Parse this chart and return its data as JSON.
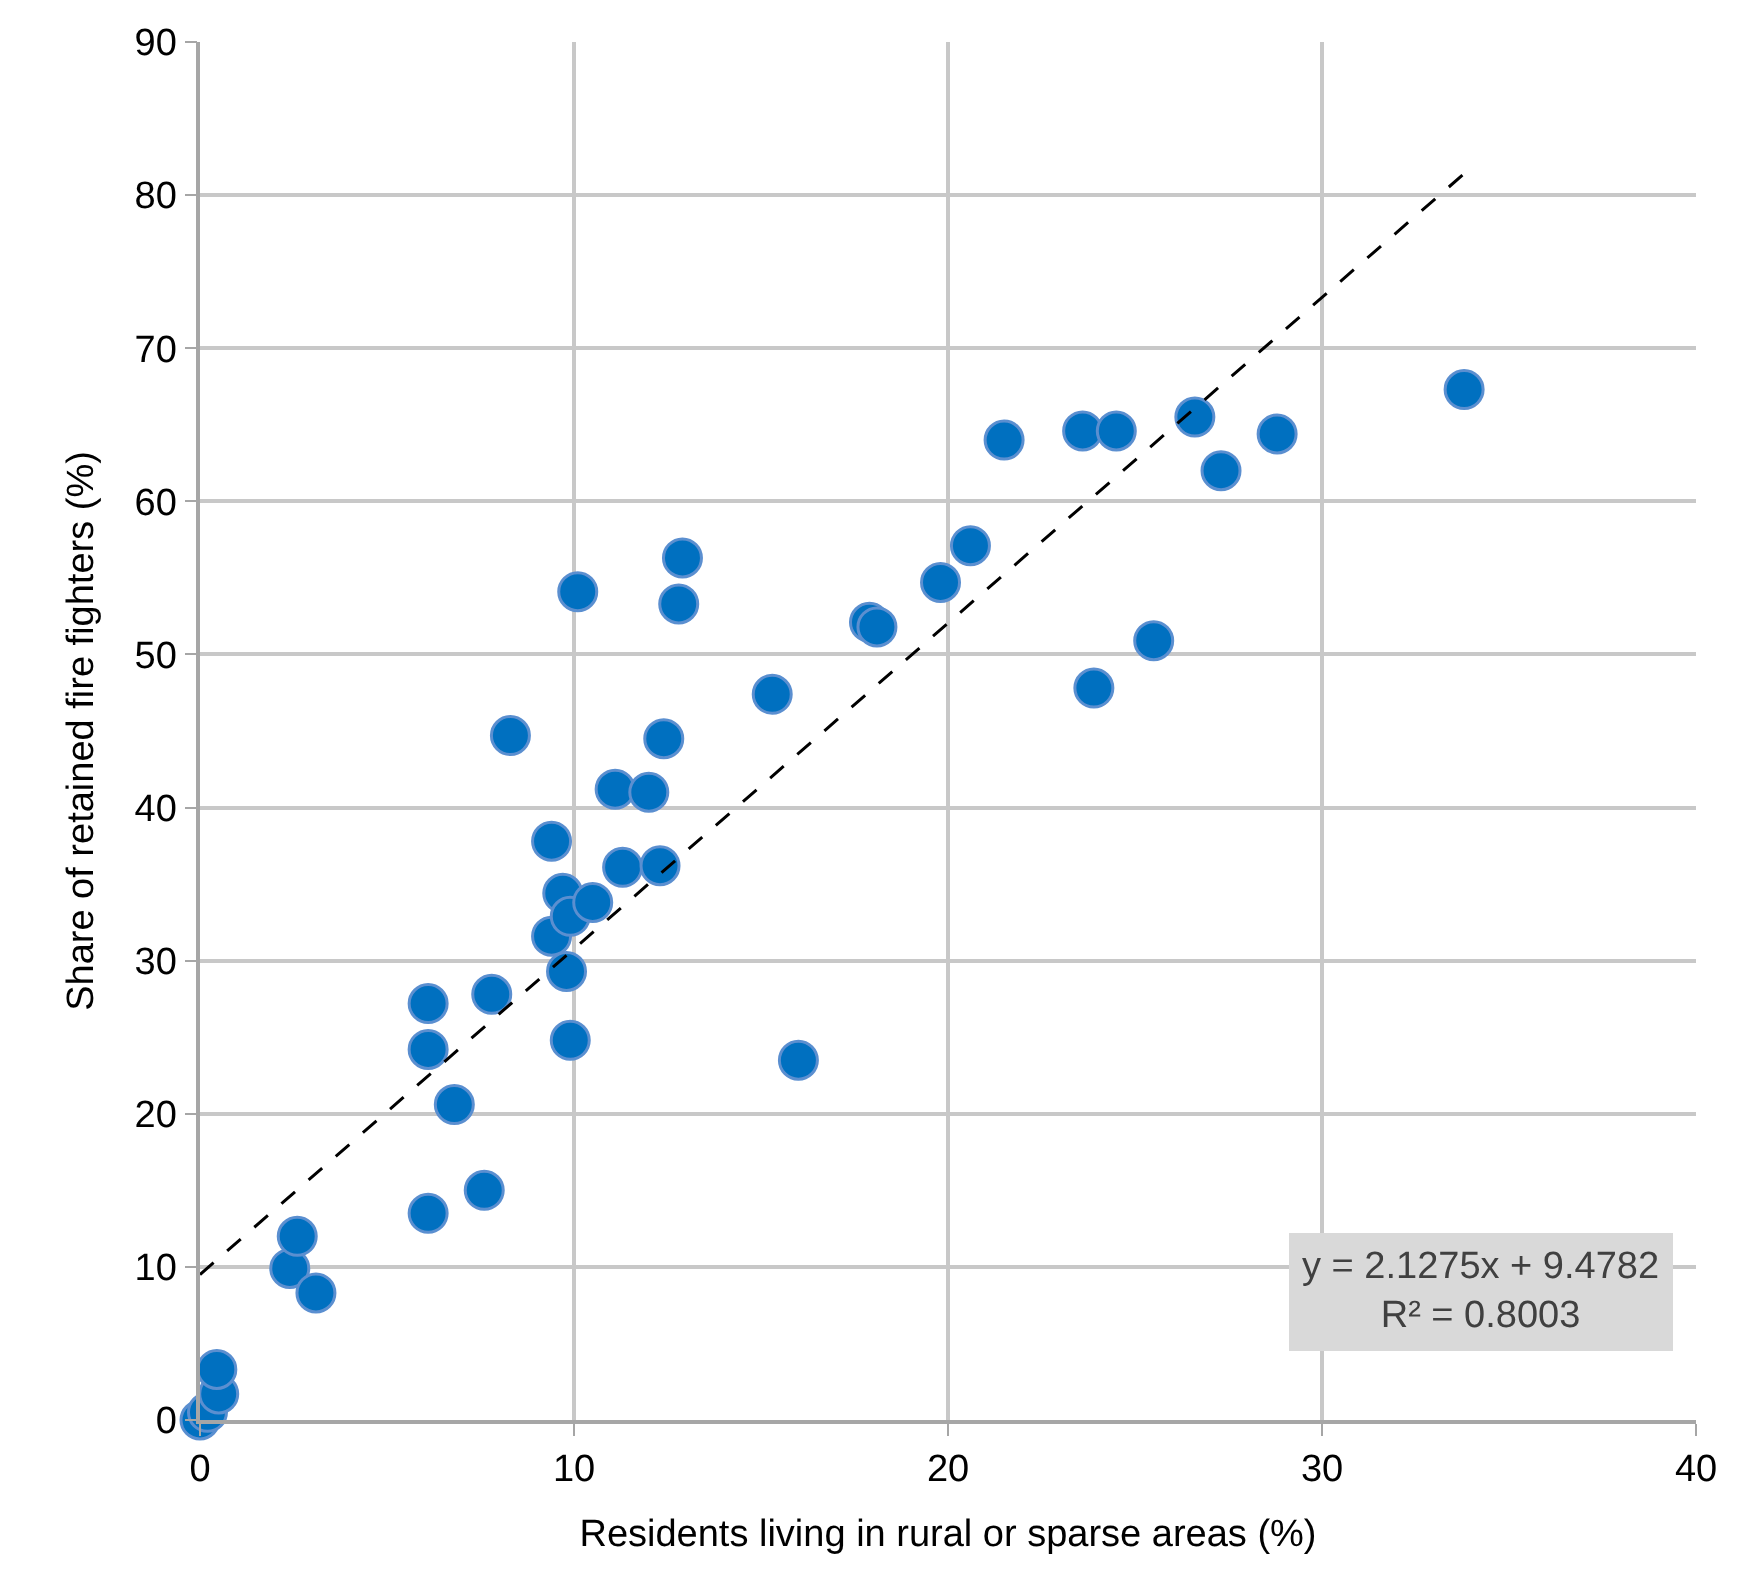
{
  "chart_data": {
    "type": "scatter",
    "xlabel": "Residents living in rural or sparse areas (%)",
    "ylabel": "Share of retained fire fighters (%)",
    "xlim": [
      0,
      40
    ],
    "xticks": [
      0,
      10,
      20,
      30,
      40
    ],
    "ylim": [
      0,
      90
    ],
    "yticks": [
      0,
      10,
      20,
      30,
      40,
      50,
      60,
      70,
      80,
      90
    ],
    "grid": true,
    "marker": "circle",
    "series": [
      {
        "color": "#0070c0",
        "x": [
          0,
          0.2,
          0.5,
          0.45,
          2.4,
          2.6,
          3.1,
          6.1,
          6.1,
          6.1,
          6.8,
          7.6,
          7.8,
          8.3,
          9.4,
          9.4,
          9.7,
          9.9,
          9.8,
          9.9,
          10.1,
          10.5,
          11.1,
          11.3,
          12.0,
          12.3,
          12.4,
          12.8,
          12.9,
          15.3,
          16.0,
          17.9,
          18.1,
          19.8,
          20.6,
          21.5,
          23.6,
          23.9,
          24.5,
          25.5,
          26.6,
          27.3,
          28.8,
          33.8
        ],
        "values": [
          0,
          0.5,
          1.7,
          3.3,
          9.9,
          12.0,
          8.3,
          13.5,
          24.2,
          27.2,
          20.6,
          15.0,
          27.8,
          44.7,
          37.8,
          31.6,
          34.4,
          32.9,
          29.3,
          24.8,
          54.1,
          33.8,
          41.2,
          36.1,
          41.0,
          36.2,
          44.5,
          53.3,
          56.3,
          47.4,
          23.5,
          52.1,
          51.8,
          54.7,
          57.1,
          64.0,
          64.6,
          47.8,
          64.6,
          50.9,
          65.5,
          62.0,
          64.4,
          67.3
        ]
      },
      {
        "type": "line",
        "color": "#000000",
        "line_style": "dashed",
        "marker": "none",
        "x": [
          0,
          33.8
        ],
        "values": [
          9.5,
          81.4
        ]
      }
    ],
    "annotations": [
      "y = 2.1275x + 9.4782\nR² = 0.8003"
    ]
  }
}
